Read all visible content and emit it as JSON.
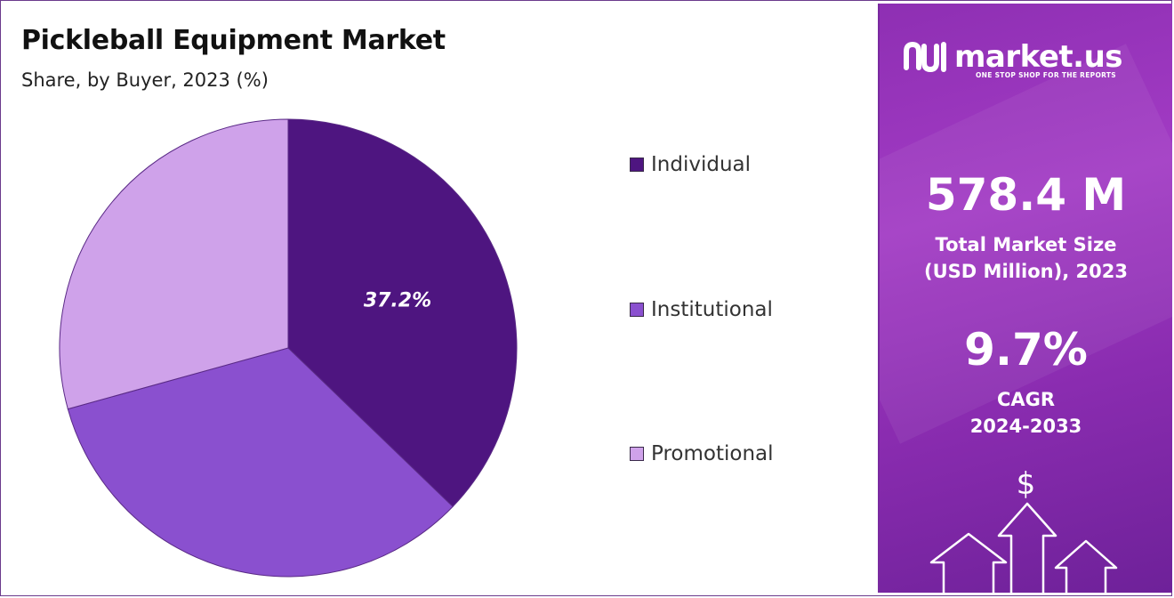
{
  "chart_data": {
    "type": "pie",
    "title": "Pickleball Equipment Market",
    "subtitle": "Share, by Buyer, 2023 (%)",
    "categories": [
      "Individual",
      "Institutional",
      "Promotional"
    ],
    "values": [
      37.2,
      33.5,
      29.3
    ],
    "colors": [
      "#4e1580",
      "#8a50cf",
      "#cfa2ea"
    ],
    "data_labels": [
      "37.2%",
      "",
      ""
    ],
    "legend_position": "right"
  },
  "panel": {
    "logo_text": "market.us",
    "logo_tagline": "ONE STOP SHOP FOR THE REPORTS",
    "market_size_value": "578.4 M",
    "market_size_caption_line1": "Total Market Size",
    "market_size_caption_line2": "(USD Million), 2023",
    "cagr_value": "9.7%",
    "cagr_caption_line1": "CAGR",
    "cagr_caption_line2": "2024-2033",
    "currency_symbol": "$"
  }
}
